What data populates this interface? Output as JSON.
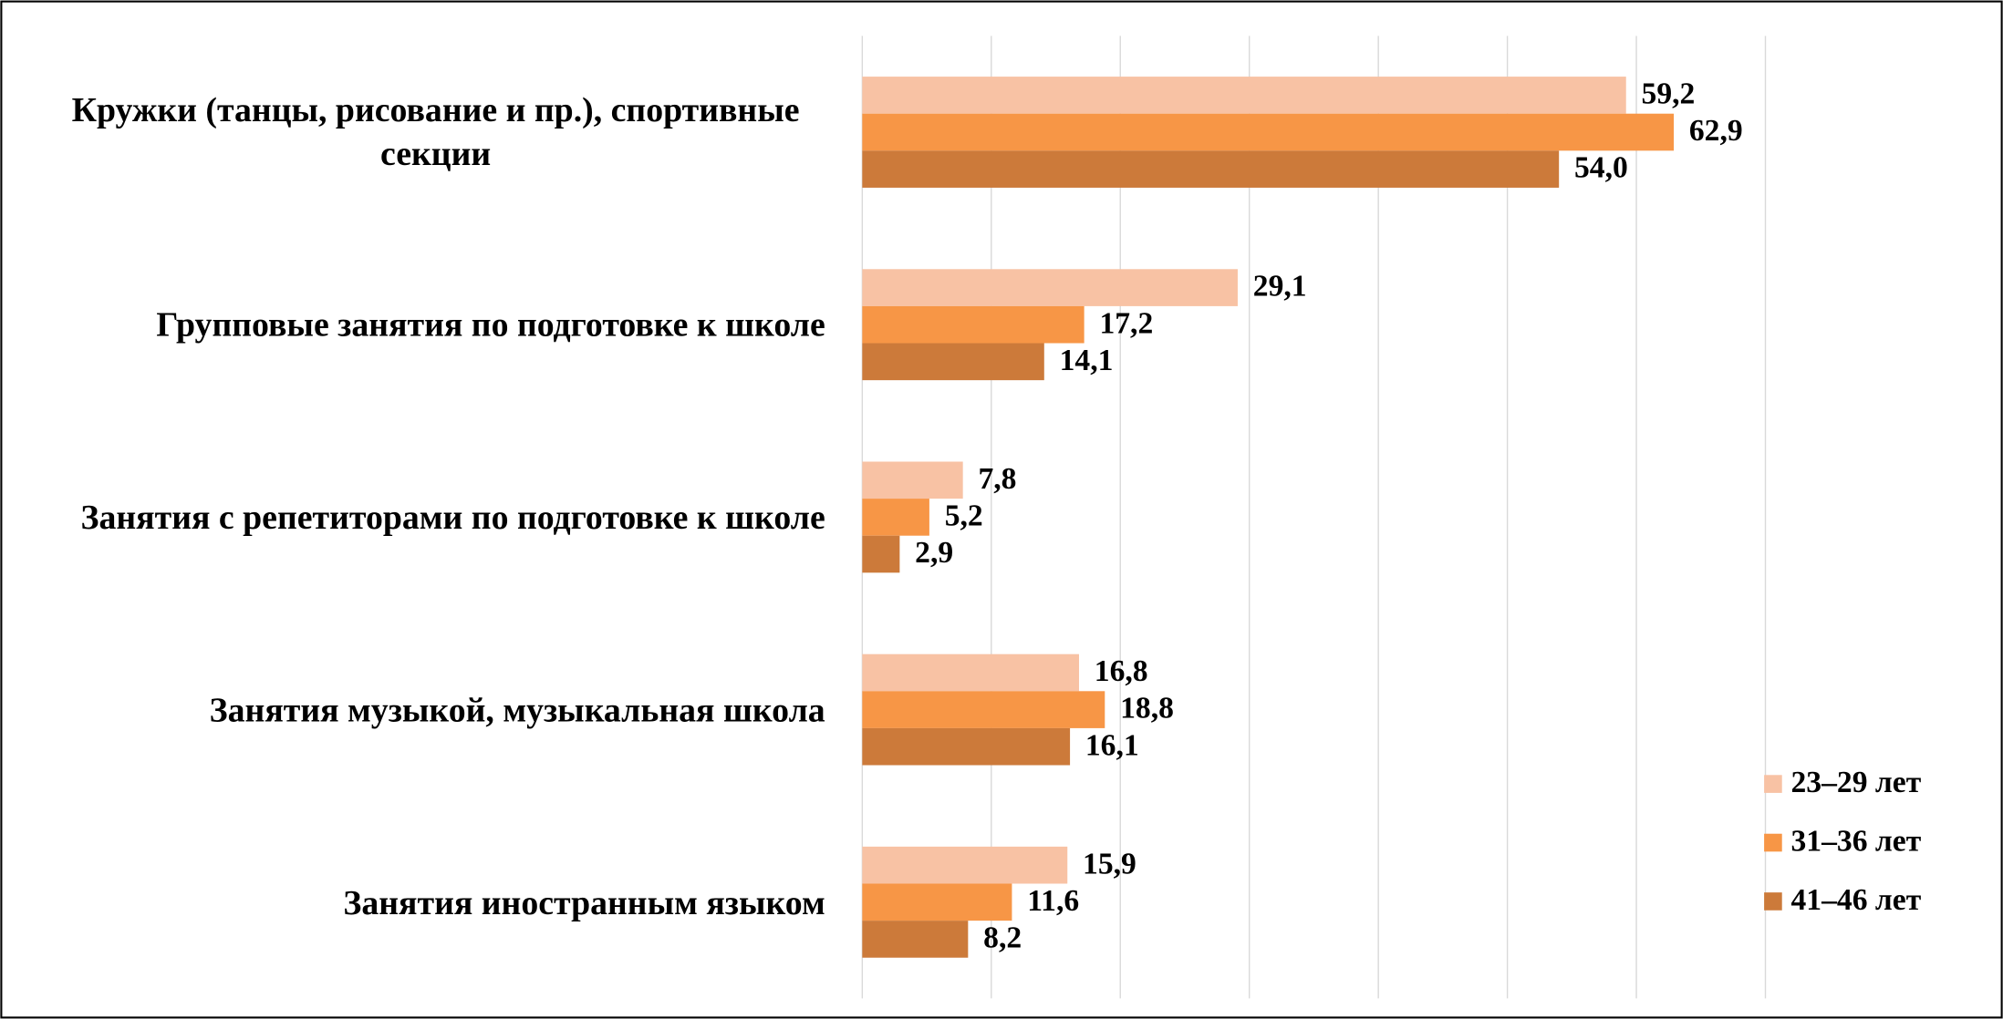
{
  "chart_data": {
    "type": "barh",
    "categories": [
      "Кружки (танцы, рисование и пр.), спортивные секции",
      "Групповые занятия по подготовке к школе",
      "Занятия с репетиторами по подготовке к школе",
      "Занятия музыкой, музыкальная школа",
      "Занятия иностранным языком"
    ],
    "series": [
      {
        "name": "23–29 лет",
        "color": "#f8c2a4",
        "values": [
          59.2,
          29.1,
          7.8,
          16.8,
          15.9
        ],
        "value_labels": [
          "59,2",
          "29,1",
          "7,8",
          "16,8",
          "15,9"
        ]
      },
      {
        "name": "31–36 лет",
        "color": "#f79646",
        "values": [
          62.9,
          17.2,
          5.2,
          18.8,
          11.6
        ],
        "value_labels": [
          "62,9",
          "17,2",
          "5,2",
          "18,8",
          "11,6"
        ]
      },
      {
        "name": "41–46 лет",
        "color": "#cc7a3a",
        "values": [
          54.0,
          14.1,
          2.9,
          16.1,
          8.2
        ],
        "value_labels": [
          "54,0",
          "14,1",
          "2,9",
          "16,1",
          "8,2"
        ]
      }
    ],
    "xlim": [
      0,
      70
    ],
    "xticks": [
      0,
      10,
      20,
      30,
      40,
      50,
      60,
      70
    ],
    "grid": true,
    "legend": "right"
  }
}
